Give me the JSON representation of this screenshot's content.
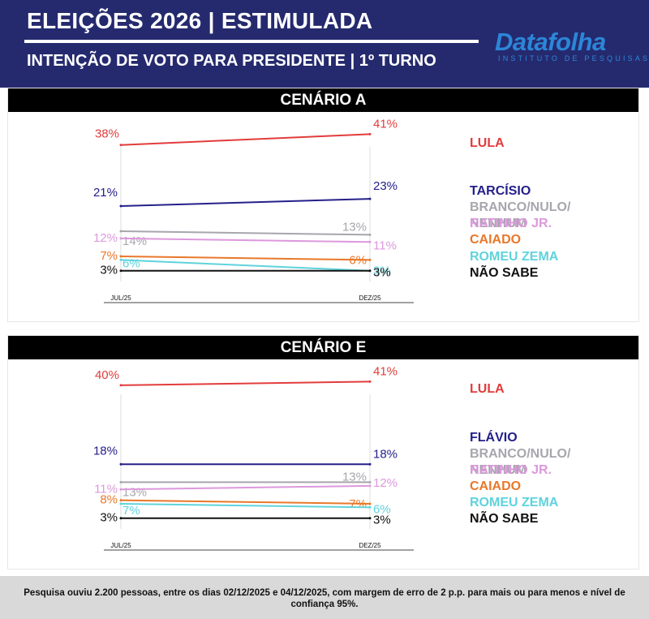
{
  "header": {
    "title": "ELEIÇÕES 2026 | ESTIMULADA",
    "subtitle": "INTENÇÃO DE VOTO PARA PRESIDENTE | 1º TURNO",
    "logo": "Datafolha",
    "logo_tagline": "INSTITUTO DE PESQUISAS"
  },
  "colors": {
    "header_bg": "#252a6e",
    "lula": "#e23c3c",
    "main_opponent": "#25208a",
    "branco": "#a6a6ad",
    "ratinho": "#dd98dd",
    "caiado": "#e8782a",
    "zema": "#5fd3dc",
    "nao_sabe": "#111111"
  },
  "chart_data": [
    {
      "type": "line",
      "title": "CENÁRIO A",
      "categories": [
        "JUL/25",
        "DEZ/25"
      ],
      "ylim": [
        0,
        42
      ],
      "series": [
        {
          "name": "LULA",
          "color": "#e23c3c",
          "values": [
            38,
            41
          ],
          "labels": [
            "38%",
            "41%"
          ]
        },
        {
          "name": "TARCÍSIO",
          "color": "#25208a",
          "values": [
            21,
            23
          ],
          "labels": [
            "21%",
            "23%"
          ]
        },
        {
          "name": "BRANCO/NULO/ NENHUM",
          "color": "#a6a6ad",
          "values": [
            14,
            13
          ],
          "labels": [
            "14%",
            "13%"
          ]
        },
        {
          "name": "RATINHO JR.",
          "color": "#dd98dd",
          "values": [
            12,
            11
          ],
          "labels": [
            "12%",
            "11%"
          ]
        },
        {
          "name": "CAIADO",
          "color": "#e8782a",
          "values": [
            7,
            6
          ],
          "labels": [
            "7%",
            "6%"
          ]
        },
        {
          "name": "ROMEU ZEMA",
          "color": "#5fd3dc",
          "values": [
            6,
            3
          ],
          "labels": [
            "6%",
            "3%"
          ]
        },
        {
          "name": "NÃO SABE",
          "color": "#111111",
          "values": [
            3,
            3
          ],
          "labels": [
            "3%",
            "3%"
          ]
        }
      ]
    },
    {
      "type": "line",
      "title": "CENÁRIO E",
      "categories": [
        "JUL/25",
        "DEZ/25"
      ],
      "ylim": [
        0,
        42
      ],
      "series": [
        {
          "name": "LULA",
          "color": "#e23c3c",
          "values": [
            40,
            41
          ],
          "labels": [
            "40%",
            "41%"
          ]
        },
        {
          "name": "FLÁVIO",
          "color": "#25208a",
          "values": [
            18,
            18
          ],
          "labels": [
            "18%",
            "18%"
          ]
        },
        {
          "name": "BRANCO/NULO/ NENHUM",
          "color": "#a6a6ad",
          "values": [
            13,
            13
          ],
          "labels": [
            "13%",
            "13%"
          ]
        },
        {
          "name": "RATINHO JR.",
          "color": "#dd98dd",
          "values": [
            11,
            12
          ],
          "labels": [
            "11%",
            "12%"
          ]
        },
        {
          "name": "CAIADO",
          "color": "#e8782a",
          "values": [
            8,
            7
          ],
          "labels": [
            "8%",
            "7%"
          ]
        },
        {
          "name": "ROMEU ZEMA",
          "color": "#5fd3dc",
          "values": [
            7,
            6
          ],
          "labels": [
            "7%",
            "6%"
          ]
        },
        {
          "name": "NÃO SABE",
          "color": "#111111",
          "values": [
            3,
            3
          ],
          "labels": [
            "3%",
            "3%"
          ]
        }
      ]
    }
  ],
  "footer": {
    "note": "Pesquisa ouviu 2.200 pessoas, entre os dias 02/12/2025 e 04/12/2025, com margem de erro de 2 p.p. para mais ou para menos e nível de confiança 95%."
  }
}
